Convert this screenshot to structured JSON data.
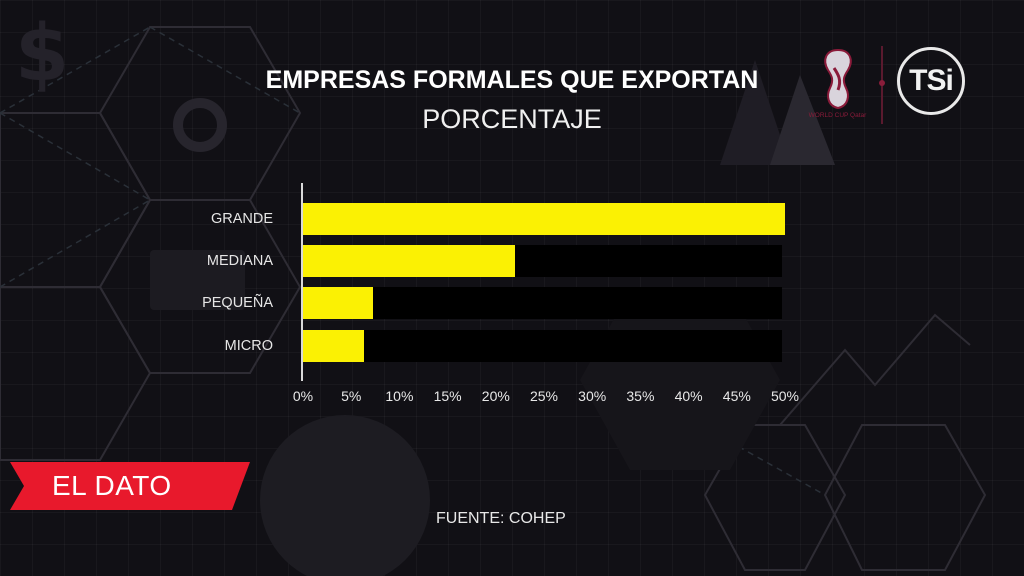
{
  "header": {
    "title": "EMPRESAS FORMALES QUE EXPORTAN",
    "subtitle": "PORCENTAJE"
  },
  "logos": {
    "event_logo": "world-cup-qatar-2022-logo",
    "event_logo_caption": "FIFA WORLD CUP Qatar 2022",
    "channel_logo_text": "TSi"
  },
  "banner": {
    "label": "EL DATO",
    "color": "#e8192c"
  },
  "footer": {
    "source": "FUENTE: COHEP"
  },
  "colors": {
    "bar": "#fbf103",
    "track": "#000000",
    "background": "#111015",
    "text": "#ffffff"
  },
  "chart_data": {
    "type": "bar",
    "orientation": "horizontal",
    "title": "EMPRESAS FORMALES QUE EXPORTAN",
    "subtitle": "PORCENTAJE",
    "categories": [
      "GRANDE",
      "MEDIANA",
      "PEQUEÑA",
      "MICRO"
    ],
    "values": [
      50,
      22,
      7.3,
      6.3
    ],
    "unit": "%",
    "xlabel": "",
    "ylabel": "",
    "xlim": [
      0,
      50
    ],
    "x_ticks": [
      "0%",
      "5%",
      "10%",
      "15%",
      "20%",
      "25%",
      "30%",
      "35%",
      "40%",
      "45%",
      "50%"
    ],
    "grid": false,
    "legend": null,
    "source": "FUENTE: COHEP"
  }
}
